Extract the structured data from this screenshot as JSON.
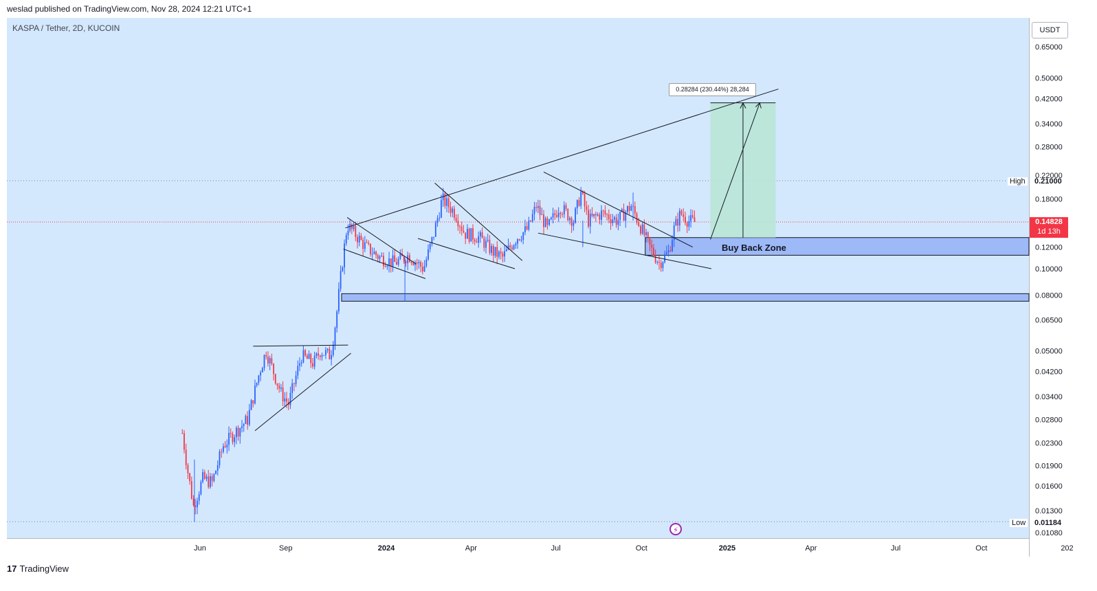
{
  "header": {
    "published": "weslad published on TradingView.com, Nov 28, 2024 12:21 UTC+1"
  },
  "symbol": {
    "title": "KASPA / Tether, 2D, KUCOIN"
  },
  "axis": {
    "currency": "USDT"
  },
  "price": {
    "current": "0.14828",
    "countdown": "1d 13h"
  },
  "labels": {
    "high": "High",
    "high_value": "0.21000",
    "low": "Low",
    "low_value": "0.01184"
  },
  "annotations": {
    "zone": "Buy Back Zone",
    "measure": "0.28284 (230.44%) 28,284"
  },
  "footer": {
    "brand": "TradingView"
  },
  "colors": {
    "up": "#2962ff",
    "down": "#f23645",
    "background": "#d4e8fd",
    "zone": "#9db9f7",
    "target": "#b9e6d6"
  },
  "chart_data": {
    "type": "candlestick",
    "title": "KASPA / Tether, 2D, KUCOIN",
    "yscale": "log",
    "ylim": [
      0.0105,
      0.75
    ],
    "y_ticks": [
      "0.65000",
      "0.50000",
      "0.42000",
      "0.34000",
      "0.28000",
      "0.22000",
      "0.18000",
      "0.12000",
      "0.10000",
      "0.08000",
      "0.06500",
      "0.05000",
      "0.04200",
      "0.03400",
      "0.02800",
      "0.02300",
      "0.01900",
      "0.01600",
      "0.01300",
      "0.01080"
    ],
    "x_ticks": [
      "Jun",
      "Sep",
      "2024",
      "Apr",
      "Jul",
      "Oct",
      "2025",
      "Apr",
      "Jul",
      "Oct",
      "202"
    ],
    "x_ticks_bold": [
      "2024",
      "2025"
    ],
    "price_path": [
      [
        "2023-05-27",
        0.025
      ],
      [
        "2023-06-02",
        0.018
      ],
      [
        "2023-06-08",
        0.0135
      ],
      [
        "2023-06-18",
        0.017
      ],
      [
        "2023-06-28",
        0.0165
      ],
      [
        "2023-07-10",
        0.0225
      ],
      [
        "2023-07-22",
        0.025
      ],
      [
        "2023-08-05",
        0.028
      ],
      [
        "2023-08-18",
        0.042
      ],
      [
        "2023-08-25",
        0.05
      ],
      [
        "2023-09-10",
        0.035
      ],
      [
        "2023-09-18",
        0.032
      ],
      [
        "2023-10-02",
        0.048
      ],
      [
        "2023-10-15",
        0.045
      ],
      [
        "2023-10-22",
        0.05
      ],
      [
        "2023-11-02",
        0.048
      ],
      [
        "2023-11-08",
        0.065
      ],
      [
        "2023-11-14",
        0.1
      ],
      [
        "2023-11-20",
        0.145
      ],
      [
        "2023-12-10",
        0.12
      ],
      [
        "2023-12-25",
        0.11
      ],
      [
        "2024-01-10",
        0.105
      ],
      [
        "2024-01-25",
        0.112
      ],
      [
        "2024-02-10",
        0.1
      ],
      [
        "2024-02-20",
        0.13
      ],
      [
        "2024-03-01",
        0.18
      ],
      [
        "2024-03-15",
        0.16
      ],
      [
        "2024-03-25",
        0.135
      ],
      [
        "2024-04-10",
        0.13
      ],
      [
        "2024-04-25",
        0.115
      ],
      [
        "2024-05-05",
        0.11
      ],
      [
        "2024-05-20",
        0.13
      ],
      [
        "2024-06-01",
        0.14
      ],
      [
        "2024-06-10",
        0.17
      ],
      [
        "2024-06-22",
        0.14
      ],
      [
        "2024-07-05",
        0.17
      ],
      [
        "2024-07-20",
        0.15
      ],
      [
        "2024-07-28",
        0.19
      ],
      [
        "2024-08-05",
        0.15
      ],
      [
        "2024-08-20",
        0.16
      ],
      [
        "2024-09-05",
        0.15
      ],
      [
        "2024-09-20",
        0.17
      ],
      [
        "2024-10-01",
        0.14
      ],
      [
        "2024-10-10",
        0.12
      ],
      [
        "2024-10-20",
        0.105
      ],
      [
        "2024-10-30",
        0.115
      ],
      [
        "2024-11-05",
        0.14
      ],
      [
        "2024-11-12",
        0.16
      ],
      [
        "2024-11-20",
        0.15
      ],
      [
        "2024-11-28",
        0.148
      ]
    ],
    "levels": {
      "high": 0.21,
      "low": 0.01184,
      "current": 0.14828
    },
    "zones": [
      {
        "name": "Buy Back Zone",
        "from": 0.112,
        "to": 0.13
      },
      {
        "from": 0.076,
        "to": 0.081
      }
    ],
    "target": {
      "from": 0.13,
      "to": 0.405,
      "label": "0.28284 (230.44%) 28,284"
    },
    "trendlines": [
      [
        [
          "2023-11-18",
          0.141
        ],
        [
          "2025-02-25",
          0.455
        ]
      ],
      [
        [
          "2023-11-20",
          0.154
        ],
        [
          "2024-02-02",
          0.104
        ]
      ],
      [
        [
          "2023-11-16",
          0.118
        ],
        [
          "2024-02-12",
          0.092
        ]
      ],
      [
        [
          "2024-02-22",
          0.206
        ],
        [
          "2024-05-26",
          0.107
        ]
      ],
      [
        [
          "2024-02-04",
          0.129
        ],
        [
          "2024-05-18",
          0.1
        ]
      ],
      [
        [
          "2024-06-18",
          0.226
        ],
        [
          "2024-11-25",
          0.12
        ]
      ],
      [
        [
          "2024-06-12",
          0.135
        ],
        [
          "2024-12-15",
          0.1
        ]
      ],
      [
        [
          "2023-08-11",
          0.052
        ],
        [
          "2023-11-21",
          0.0525
        ]
      ],
      [
        [
          "2023-08-13",
          0.0255
        ],
        [
          "2023-11-24",
          0.049
        ]
      ]
    ]
  }
}
